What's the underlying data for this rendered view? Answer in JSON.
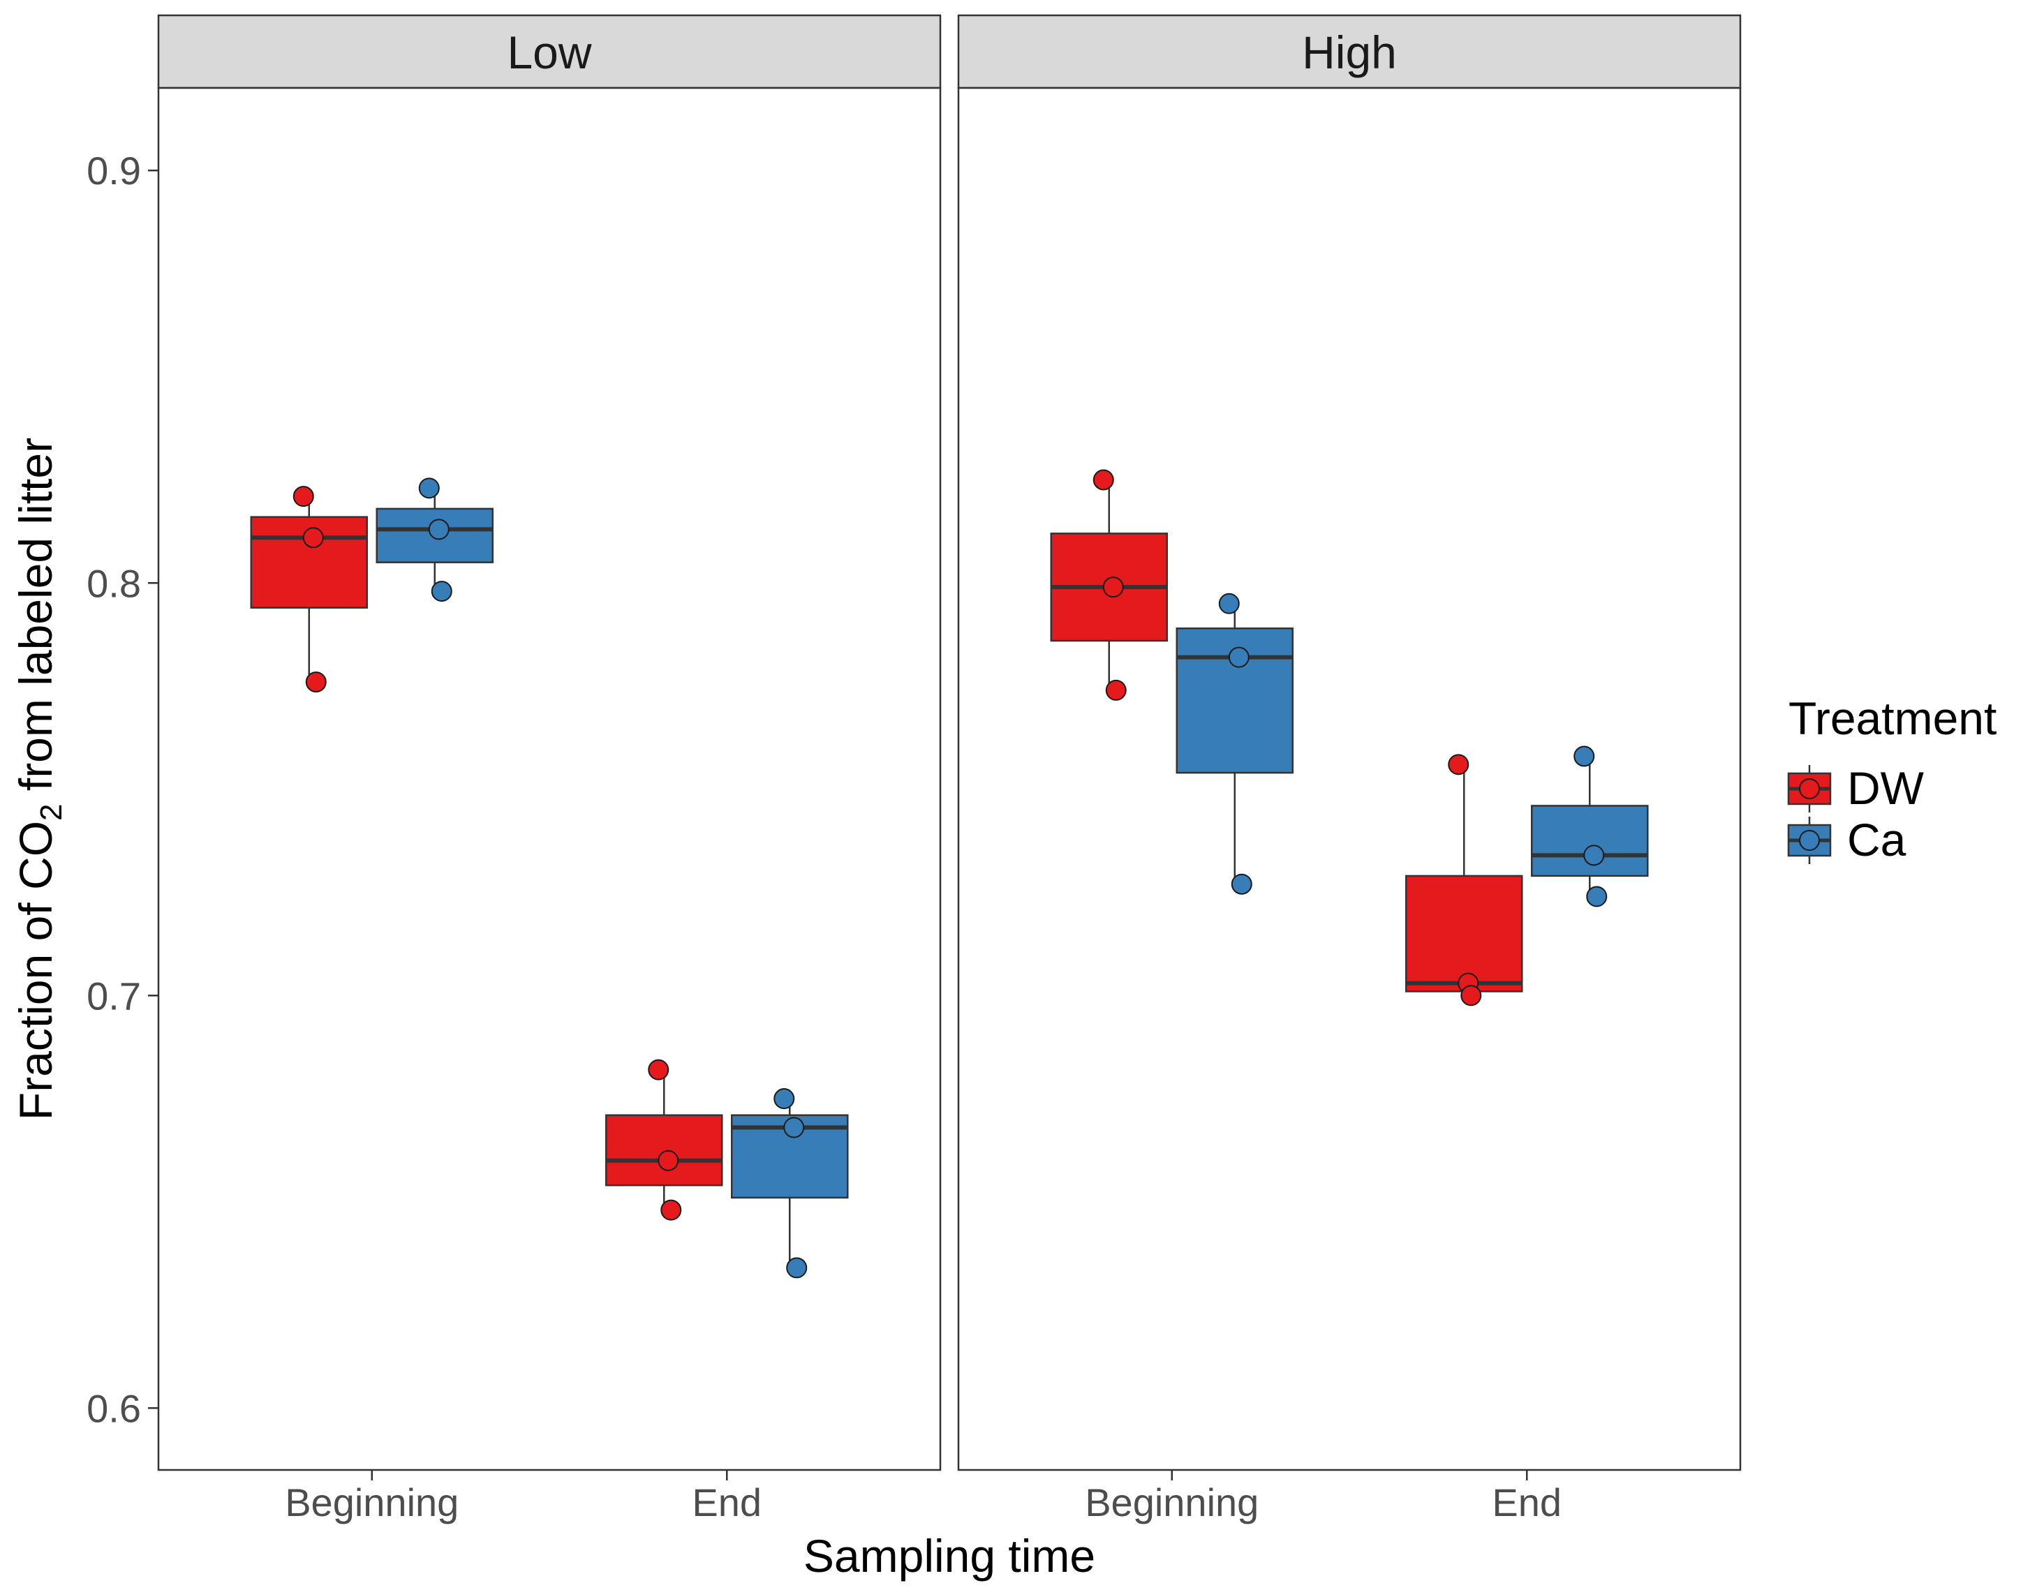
{
  "chart_data": {
    "type": "boxplot",
    "facets": [
      "Low",
      "High"
    ],
    "categories": [
      "Beginning",
      "End"
    ],
    "xlabel": "Sampling time",
    "ylabel": {
      "main": "Fraction of CO",
      "subscript": "2",
      "suffix": " from labeled litter"
    },
    "ylim": [
      0.585,
      0.92
    ],
    "yticks": [
      0.6,
      0.7,
      0.8,
      0.9
    ],
    "ytick_labels": [
      "0.6",
      "0.7",
      "0.8",
      "0.9"
    ],
    "legend": {
      "title": "Treatment",
      "position": "right",
      "items": [
        {
          "name": "DW",
          "color": "#E41A1C"
        },
        {
          "name": "Ca",
          "color": "#377EB8"
        }
      ]
    },
    "boxes": [
      {
        "facet": "Low",
        "category": "Beginning",
        "treatment": "DW",
        "color": "#E41A1C",
        "q1": 0.794,
        "median": 0.811,
        "q3": 0.816,
        "whisker_low": 0.776,
        "whisker_high": 0.821,
        "points": [
          0.821,
          0.811,
          0.776
        ]
      },
      {
        "facet": "Low",
        "category": "Beginning",
        "treatment": "Ca",
        "color": "#377EB8",
        "q1": 0.805,
        "median": 0.813,
        "q3": 0.818,
        "whisker_low": 0.798,
        "whisker_high": 0.823,
        "points": [
          0.823,
          0.813,
          0.798
        ]
      },
      {
        "facet": "Low",
        "category": "End",
        "treatment": "DW",
        "color": "#E41A1C",
        "q1": 0.654,
        "median": 0.66,
        "q3": 0.671,
        "whisker_low": 0.648,
        "whisker_high": 0.682,
        "points": [
          0.682,
          0.66,
          0.648
        ]
      },
      {
        "facet": "Low",
        "category": "End",
        "treatment": "Ca",
        "color": "#377EB8",
        "q1": 0.651,
        "median": 0.668,
        "q3": 0.671,
        "whisker_low": 0.634,
        "whisker_high": 0.675,
        "points": [
          0.675,
          0.668,
          0.634
        ]
      },
      {
        "facet": "High",
        "category": "Beginning",
        "treatment": "DW",
        "color": "#E41A1C",
        "q1": 0.786,
        "median": 0.799,
        "q3": 0.812,
        "whisker_low": 0.774,
        "whisker_high": 0.825,
        "points": [
          0.825,
          0.799,
          0.774
        ]
      },
      {
        "facet": "High",
        "category": "Beginning",
        "treatment": "Ca",
        "color": "#377EB8",
        "q1": 0.754,
        "median": 0.782,
        "q3": 0.789,
        "whisker_low": 0.727,
        "whisker_high": 0.795,
        "points": [
          0.795,
          0.782,
          0.727
        ]
      },
      {
        "facet": "High",
        "category": "End",
        "treatment": "DW",
        "color": "#E41A1C",
        "q1": 0.701,
        "median": 0.703,
        "q3": 0.729,
        "whisker_low": 0.7,
        "whisker_high": 0.756,
        "points": [
          0.756,
          0.703,
          0.7
        ]
      },
      {
        "facet": "High",
        "category": "End",
        "treatment": "Ca",
        "color": "#377EB8",
        "q1": 0.729,
        "median": 0.734,
        "q3": 0.746,
        "whisker_low": 0.724,
        "whisker_high": 0.758,
        "points": [
          0.758,
          0.734,
          0.724
        ]
      }
    ]
  }
}
